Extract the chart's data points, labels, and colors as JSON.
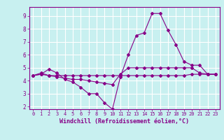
{
  "title": "",
  "xlabel": "Windchill (Refroidissement éolien,°C)",
  "ylabel": "",
  "bg_color": "#c8f0f0",
  "grid_color": "#ffffff",
  "line_color": "#880088",
  "xlim": [
    -0.5,
    23.5
  ],
  "ylim": [
    1.8,
    9.7
  ],
  "yticks": [
    2,
    3,
    4,
    5,
    6,
    7,
    8,
    9
  ],
  "xticks": [
    0,
    1,
    2,
    3,
    4,
    5,
    6,
    7,
    8,
    9,
    10,
    11,
    12,
    13,
    14,
    15,
    16,
    17,
    18,
    19,
    20,
    21,
    22,
    23
  ],
  "line1_x": [
    0,
    1,
    2,
    3,
    4,
    5,
    6,
    7,
    8,
    9,
    10,
    11,
    12,
    13,
    14,
    15,
    16,
    17,
    18,
    19,
    20,
    21,
    22,
    23
  ],
  "line1_y": [
    4.4,
    4.5,
    4.9,
    4.6,
    4.1,
    3.9,
    3.5,
    3.0,
    3.0,
    2.3,
    1.8,
    4.3,
    6.0,
    7.5,
    7.7,
    9.2,
    9.2,
    7.9,
    6.8,
    5.5,
    5.2,
    5.2,
    4.5,
    4.5
  ],
  "line2_x": [
    0,
    1,
    2,
    3,
    4,
    5,
    6,
    7,
    8,
    9,
    10,
    11,
    12,
    13,
    14,
    15,
    16,
    17,
    18,
    19,
    20,
    21,
    22,
    23
  ],
  "line2_y": [
    4.4,
    4.6,
    4.4,
    4.3,
    4.2,
    4.1,
    4.1,
    4.0,
    3.9,
    3.8,
    3.7,
    4.5,
    5.0,
    5.0,
    5.0,
    5.0,
    5.0,
    5.0,
    5.0,
    5.0,
    5.0,
    4.6,
    4.5,
    4.5
  ],
  "line3_x": [
    0,
    1,
    2,
    3,
    4,
    5,
    6,
    7,
    8,
    9,
    10,
    11,
    12,
    13,
    14,
    15,
    16,
    17,
    18,
    19,
    20,
    21,
    22,
    23
  ],
  "line3_y": [
    4.4,
    4.5,
    4.4,
    4.4,
    4.4,
    4.4,
    4.4,
    4.4,
    4.4,
    4.4,
    4.4,
    4.4,
    4.4,
    4.4,
    4.4,
    4.4,
    4.4,
    4.4,
    4.4,
    4.4,
    4.5,
    4.5,
    4.5,
    4.5
  ],
  "figsize": [
    3.2,
    2.0
  ],
  "dpi": 100
}
